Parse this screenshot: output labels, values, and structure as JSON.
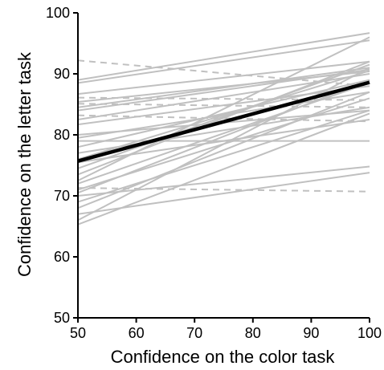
{
  "chart_data": {
    "type": "line",
    "title": "",
    "xlabel": "Confidence on the color task",
    "ylabel": "Confidence on the letter task",
    "xlim": [
      50,
      100
    ],
    "ylim": [
      50,
      100
    ],
    "x_ticks": [
      50,
      60,
      70,
      80,
      90,
      100
    ],
    "y_ticks": [
      50,
      60,
      70,
      80,
      90,
      100
    ],
    "x_tick_labels": [
      "50",
      "60",
      "70",
      "80",
      "90",
      "100"
    ],
    "y_tick_labels": [
      "50",
      "60",
      "70",
      "80",
      "90",
      "100"
    ],
    "grid": false,
    "legend": "none",
    "colors": {
      "individual_line": "#c0c0c0",
      "group_line": "#000000",
      "axis": "#000000"
    },
    "group_fit": {
      "x": [
        50,
        100
      ],
      "y": [
        75.7,
        88.6
      ]
    },
    "individual_fits": [
      {
        "x": [
          50,
          100
        ],
        "y": [
          92.2,
          88.0
        ],
        "style": "dashed"
      },
      {
        "x": [
          50,
          100
        ],
        "y": [
          89.0,
          96.7
        ],
        "style": "solid"
      },
      {
        "x": [
          50,
          100
        ],
        "y": [
          88.5,
          95.5
        ],
        "style": "solid"
      },
      {
        "x": [
          50,
          100
        ],
        "y": [
          86.7,
          92.0
        ],
        "style": "solid"
      },
      {
        "x": [
          50,
          100
        ],
        "y": [
          86.1,
          85.7
        ],
        "style": "dashed"
      },
      {
        "x": [
          50,
          100
        ],
        "y": [
          85.4,
          90.4
        ],
        "style": "solid"
      },
      {
        "x": [
          50,
          100
        ],
        "y": [
          85.1,
          84.5
        ],
        "style": "dashed"
      },
      {
        "x": [
          50,
          100
        ],
        "y": [
          84.5,
          91.0
        ],
        "style": "solid"
      },
      {
        "x": [
          50,
          100
        ],
        "y": [
          84.0,
          90.7
        ],
        "style": "solid"
      },
      {
        "x": [
          50,
          100
        ],
        "y": [
          83.2,
          82.2
        ],
        "style": "dashed"
      },
      {
        "x": [
          50,
          100
        ],
        "y": [
          82.5,
          90.0
        ],
        "style": "solid"
      },
      {
        "x": [
          50,
          100
        ],
        "y": [
          81.7,
          88.0
        ],
        "style": "solid"
      },
      {
        "x": [
          50,
          100
        ],
        "y": [
          80.0,
          84.0
        ],
        "style": "solid"
      },
      {
        "x": [
          50,
          100
        ],
        "y": [
          79.5,
          87.0
        ],
        "style": "solid"
      },
      {
        "x": [
          50,
          100
        ],
        "y": [
          79.0,
          79.0
        ],
        "style": "solid"
      },
      {
        "x": [
          50,
          100
        ],
        "y": [
          78.0,
          89.0
        ],
        "style": "solid"
      },
      {
        "x": [
          50,
          100
        ],
        "y": [
          77.0,
          84.5
        ],
        "style": "solid"
      },
      {
        "x": [
          50,
          100
        ],
        "y": [
          76.0,
          90.5
        ],
        "style": "solid"
      },
      {
        "x": [
          50,
          100
        ],
        "y": [
          75.5,
          82.5
        ],
        "style": "solid"
      },
      {
        "x": [
          50,
          100
        ],
        "y": [
          74.5,
          91.5
        ],
        "style": "solid"
      },
      {
        "x": [
          50,
          100
        ],
        "y": [
          73.5,
          92.0
        ],
        "style": "solid"
      },
      {
        "x": [
          50,
          100
        ],
        "y": [
          72.5,
          96.0
        ],
        "style": "solid"
      },
      {
        "x": [
          50,
          100
        ],
        "y": [
          72.0,
          88.5
        ],
        "style": "solid"
      },
      {
        "x": [
          50,
          100
        ],
        "y": [
          71.3,
          70.7
        ],
        "style": "dashed"
      },
      {
        "x": [
          50,
          100
        ],
        "y": [
          71.0,
          86.0
        ],
        "style": "solid"
      },
      {
        "x": [
          50,
          100
        ],
        "y": [
          70.5,
          89.0
        ],
        "style": "solid"
      },
      {
        "x": [
          50,
          100
        ],
        "y": [
          70.0,
          74.8
        ],
        "style": "solid"
      },
      {
        "x": [
          50,
          100
        ],
        "y": [
          69.0,
          84.0
        ],
        "style": "solid"
      },
      {
        "x": [
          50,
          100
        ],
        "y": [
          68.0,
          87.0
        ],
        "style": "solid"
      },
      {
        "x": [
          50,
          100
        ],
        "y": [
          67.0,
          73.8
        ],
        "style": "solid"
      },
      {
        "x": [
          50,
          100
        ],
        "y": [
          66.0,
          91.0
        ],
        "style": "solid"
      },
      {
        "x": [
          50,
          100
        ],
        "y": [
          65.3,
          83.5
        ],
        "style": "solid"
      }
    ]
  }
}
